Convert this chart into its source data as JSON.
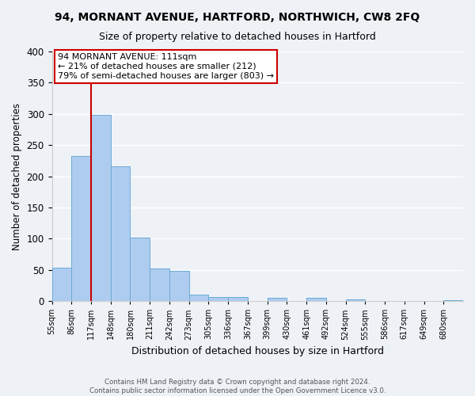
{
  "title": "94, MORNANT AVENUE, HARTFORD, NORTHWICH, CW8 2FQ",
  "subtitle": "Size of property relative to detached houses in Hartford",
  "xlabel": "Distribution of detached houses by size in Hartford",
  "ylabel": "Number of detached properties",
  "bin_labels": [
    "55sqm",
    "86sqm",
    "117sqm",
    "148sqm",
    "180sqm",
    "211sqm",
    "242sqm",
    "273sqm",
    "305sqm",
    "336sqm",
    "367sqm",
    "399sqm",
    "430sqm",
    "461sqm",
    "492sqm",
    "524sqm",
    "555sqm",
    "586sqm",
    "617sqm",
    "649sqm",
    "680sqm"
  ],
  "bar_values": [
    54,
    233,
    298,
    216,
    102,
    52,
    49,
    10,
    6,
    7,
    0,
    5,
    0,
    5,
    0,
    3,
    0,
    0,
    0,
    0,
    2
  ],
  "bar_color": "#aeccf0",
  "bar_edgecolor": "#6aaad4",
  "vline_color": "#cc0000",
  "annotation_title": "94 MORNANT AVENUE: 111sqm",
  "annotation_line1": "← 21% of detached houses are smaller (212)",
  "annotation_line2": "79% of semi-detached houses are larger (803) →",
  "annotation_box_edgecolor": "#cc0000",
  "ylim": [
    0,
    400
  ],
  "yticks": [
    0,
    50,
    100,
    150,
    200,
    250,
    300,
    350,
    400
  ],
  "footer_line1": "Contains HM Land Registry data © Crown copyright and database right 2024.",
  "footer_line2": "Contains public sector information licensed under the Open Government Licence v3.0.",
  "bg_color": "#eef2f7",
  "grid_color": "#ffffff"
}
